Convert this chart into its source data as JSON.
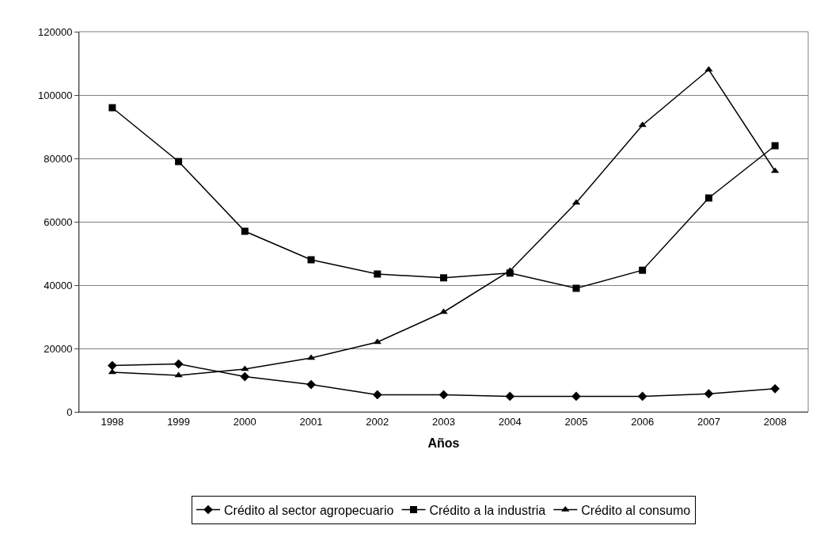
{
  "chart_data": {
    "type": "line",
    "xlabel": "Años",
    "categories": [
      "1998",
      "1999",
      "2000",
      "2001",
      "2002",
      "2003",
      "2004",
      "2005",
      "2006",
      "2007",
      "2008"
    ],
    "series": [
      {
        "name": "Crédito al sector agropecuario",
        "color": "#000000",
        "marker": "diamond",
        "values": [
          14600,
          15100,
          11100,
          8600,
          5400,
          5400,
          4900,
          4900,
          4900,
          5700,
          7300
        ]
      },
      {
        "name": "Crédito a la industria",
        "color": "#000000",
        "marker": "square",
        "values": [
          96000,
          79000,
          57000,
          48000,
          43500,
          42300,
          43800,
          39000,
          44700,
          67500,
          84000
        ]
      },
      {
        "name": "Crédito al consumo",
        "color": "#000000",
        "marker": "triangle",
        "values": [
          12500,
          11500,
          13500,
          17000,
          22000,
          31500,
          44500,
          66000,
          90500,
          108000,
          76000
        ]
      }
    ],
    "ylim": [
      0,
      120000
    ],
    "yticks": [
      0,
      20000,
      40000,
      60000,
      80000,
      100000,
      120000
    ],
    "grid": "y",
    "legend": "bottom",
    "line_style": "solid"
  }
}
